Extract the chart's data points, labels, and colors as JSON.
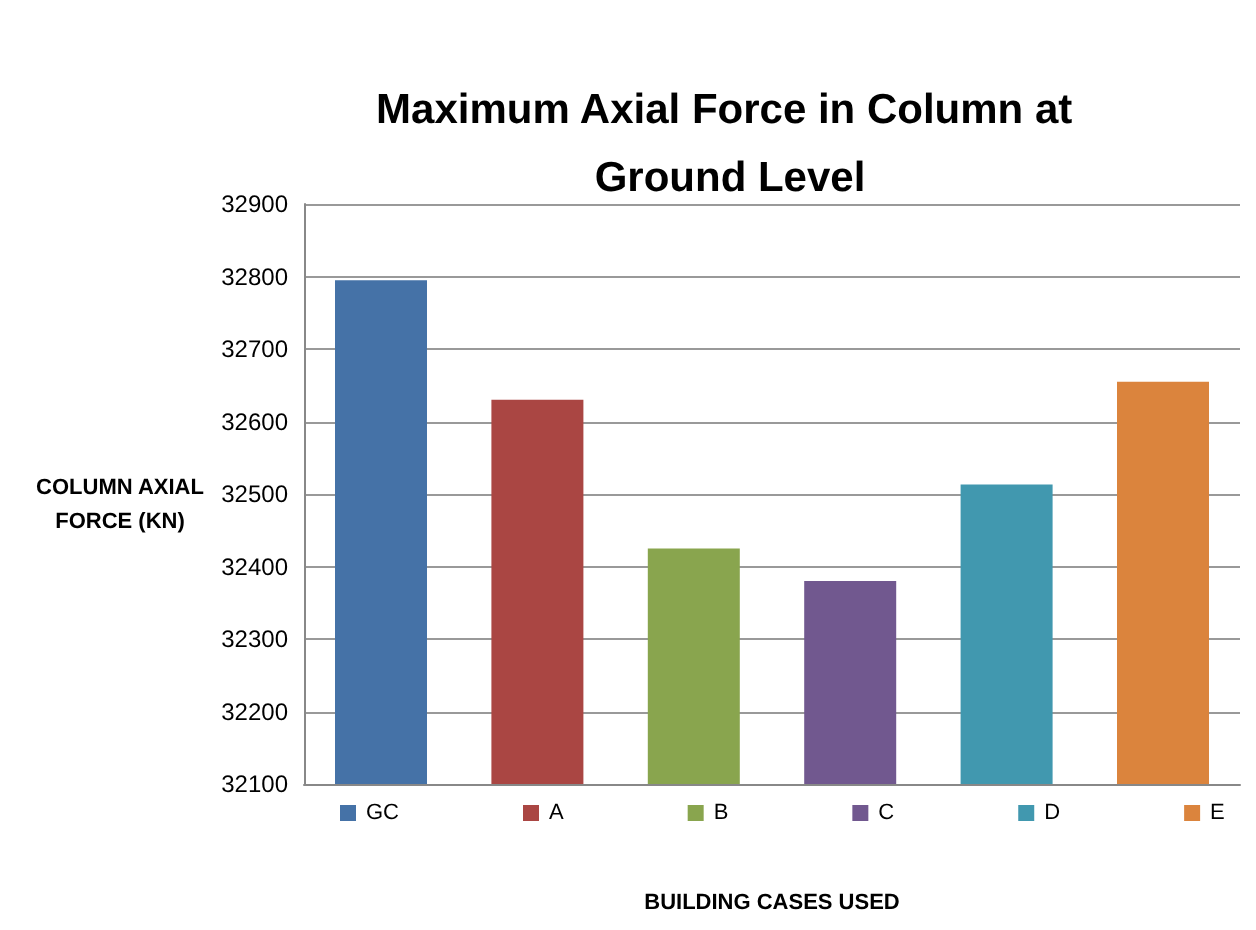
{
  "chart_data": {
    "type": "bar",
    "title": "Maximum Axial Force in Column at Ground Level",
    "xlabel": "BUILDING CASES USED",
    "ylabel": "COLUMN AXIAL FORCE (KN)",
    "categories": [
      null
    ],
    "series": [
      {
        "name": "GC",
        "color": "#4572a7",
        "values": [
          32795
        ]
      },
      {
        "name": "A",
        "color": "#aa4643",
        "values": [
          32630
        ]
      },
      {
        "name": "B",
        "color": "#89a54e",
        "values": [
          32425
        ]
      },
      {
        "name": "C",
        "color": "#71588f",
        "values": [
          32380
        ]
      },
      {
        "name": "D",
        "color": "#4198af",
        "values": [
          32513
        ]
      },
      {
        "name": "E",
        "color": "#db843d",
        "values": [
          32655
        ]
      }
    ],
    "ylim": [
      32100,
      32900
    ],
    "yticks": [
      32100,
      32200,
      32300,
      32400,
      32500,
      32600,
      32700,
      32800,
      32900
    ],
    "grid": "y",
    "legend": "bottom"
  }
}
